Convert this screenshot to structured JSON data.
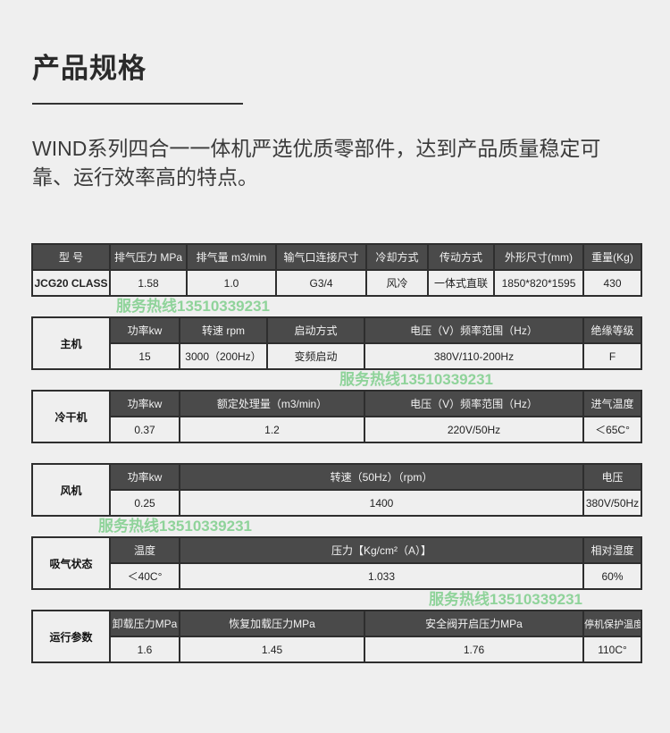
{
  "title": "产品规格",
  "intro": "WIND系列四合一一体机严选优质零部件，达到产品质量稳定可靠、运行效率高的特点。",
  "spec_table": {
    "headers": [
      "型 号",
      "排气压力 MPa",
      "排气量 m3/min",
      "输气口连接尺寸",
      "冷却方式",
      "传动方式",
      "外形尺寸(mm)",
      "重量(Kg)"
    ],
    "values": [
      "JCG20 CLASS",
      "1.58",
      "1.0",
      "G3/4",
      "风冷",
      "一体式直联",
      "1850*820*1595",
      "430"
    ]
  },
  "sections": [
    {
      "label": "主机",
      "headers": [
        "功率kw",
        "转速 rpm",
        "启动方式",
        "电压（V）频率范围（Hz）",
        "绝缘等级"
      ],
      "values": [
        "15",
        "3000（200Hz）",
        "变频启动",
        "380V/110-200Hz",
        "F"
      ]
    },
    {
      "label": "冷干机",
      "headers": [
        "功率kw",
        "额定处理量（m3/min）",
        "电压（V）频率范围（Hz）",
        "进气温度"
      ],
      "values": [
        "0.37",
        "1.2",
        "220V/50Hz",
        "＜65C°"
      ]
    },
    {
      "label": "风机",
      "headers": [
        "功率kw",
        "转速（50Hz）（rpm）",
        "电压"
      ],
      "values": [
        "0.25",
        "1400",
        "380V/50Hz"
      ]
    },
    {
      "label": "吸气状态",
      "headers": [
        "温度",
        "压力【Kg/cm²（A）】",
        "相对湿度"
      ],
      "values": [
        "＜40C°",
        "1.033",
        "60%"
      ]
    },
    {
      "label": "运行参数",
      "headers": [
        "卸载压力MPa",
        "恢复加载压力MPa",
        "安全阀开启压力MPa",
        "停机保护温度"
      ],
      "values": [
        "1.6",
        "1.45",
        "1.76",
        "110C°"
      ]
    }
  ],
  "watermark": "服务热线13510339231",
  "colors": {
    "header_bg": "#4a4a4a",
    "page_bg": "#efefef",
    "watermark": "#5cbf6a"
  }
}
